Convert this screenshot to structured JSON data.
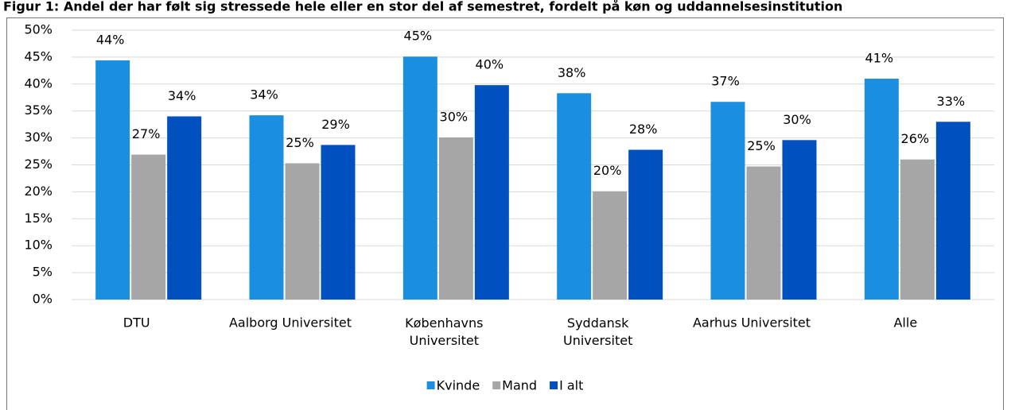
{
  "chart_data": {
    "type": "bar",
    "title": "Figur 1: Andel der har følt sig stressede hele eller en stor del af semestret, fordelt på køn og uddannelsesinstitution",
    "categories": [
      "DTU",
      "Aalborg Universitet",
      "Københavns Universitet",
      "Syddansk Universitet",
      "Aarhus Universitet",
      "Alle"
    ],
    "series": [
      {
        "name": "Kvinde",
        "color": "#1a8fe0",
        "values": [
          44.4,
          34.2,
          45.1,
          38.3,
          36.7,
          41.0
        ],
        "value_labels": [
          "44%",
          "34%",
          "45%",
          "38%",
          "37%",
          "41%"
        ]
      },
      {
        "name": "Mand",
        "color": "#a6a6a6",
        "values": [
          26.9,
          25.3,
          30.1,
          20.1,
          24.7,
          26.0
        ],
        "value_labels": [
          "27%",
          "25%",
          "30%",
          "20%",
          "25%",
          "26%"
        ]
      },
      {
        "name": "I alt",
        "color": "#0050c0",
        "values": [
          34.0,
          28.7,
          39.8,
          27.8,
          29.6,
          33.0
        ],
        "value_labels": [
          "34%",
          "29%",
          "40%",
          "28%",
          "30%",
          "33%"
        ]
      }
    ],
    "ylim": [
      0,
      50
    ],
    "yticks": [
      {
        "value": 0,
        "label": "0%"
      },
      {
        "value": 5,
        "label": "5%"
      },
      {
        "value": 10,
        "label": "10%"
      },
      {
        "value": 15,
        "label": "15%"
      },
      {
        "value": 20,
        "label": "20%"
      },
      {
        "value": 25,
        "label": "25%"
      },
      {
        "value": 30,
        "label": "30%"
      },
      {
        "value": 35,
        "label": "35%"
      },
      {
        "value": 40,
        "label": "40%"
      },
      {
        "value": 45,
        "label": "45%"
      },
      {
        "value": 50,
        "label": "50%"
      }
    ],
    "grid": true,
    "legend": "bottom"
  }
}
